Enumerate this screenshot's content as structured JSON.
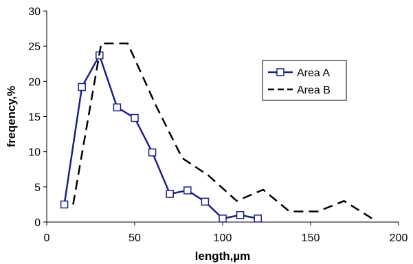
{
  "chart_data": {
    "type": "line",
    "xlabel": "length,µm",
    "ylabel": "freqency,%",
    "xlim": [
      0,
      200
    ],
    "ylim": [
      0,
      30
    ],
    "xticks": [
      0,
      50,
      100,
      150,
      200
    ],
    "yticks": [
      0,
      5,
      10,
      15,
      20,
      25,
      30
    ],
    "grid": false,
    "legend_position": "right",
    "series": [
      {
        "name": "Area A",
        "color": "#1a1f8c",
        "marker": "square",
        "line_style": "solid",
        "x": [
          10,
          20,
          30,
          40,
          50,
          60,
          70,
          80,
          90,
          100,
          110,
          120
        ],
        "y": [
          2.5,
          19.2,
          23.7,
          16.3,
          14.8,
          9.9,
          4.0,
          4.5,
          2.9,
          0.5,
          1.0,
          0.5
        ]
      },
      {
        "name": "Area B",
        "color": "#000000",
        "marker": "none",
        "line_style": "dashed",
        "x": [
          15,
          31,
          46,
          62,
          77,
          92,
          108,
          123,
          138,
          154,
          169,
          185
        ],
        "y": [
          2.5,
          25.4,
          25.4,
          16.6,
          9.1,
          6.6,
          3.0,
          4.6,
          1.5,
          1.5,
          3.0,
          0.5
        ]
      }
    ]
  }
}
